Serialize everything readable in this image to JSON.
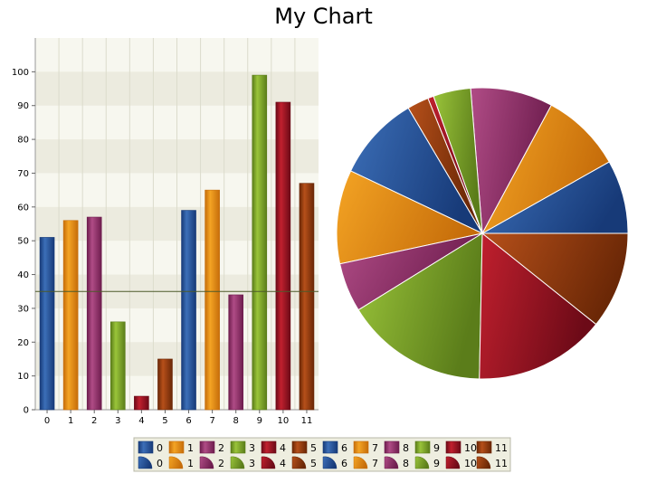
{
  "title": "My Chart",
  "chart_data": [
    {
      "type": "bar",
      "categories": [
        "0",
        "1",
        "2",
        "3",
        "4",
        "5",
        "6",
        "7",
        "8",
        "9",
        "10",
        "11"
      ],
      "values": [
        51,
        56,
        57,
        26,
        4,
        15,
        59,
        65,
        34,
        99,
        91,
        67
      ],
      "reference_line": 35,
      "ylim": [
        0,
        110
      ],
      "yticks": [
        0,
        10,
        20,
        30,
        40,
        50,
        60,
        70,
        80,
        90,
        100
      ],
      "grid": true
    },
    {
      "type": "pie",
      "categories": [
        "0",
        "1",
        "2",
        "3",
        "4",
        "5",
        "6",
        "7",
        "8",
        "9",
        "10",
        "11"
      ],
      "values": [
        51,
        56,
        57,
        26,
        4,
        15,
        59,
        65,
        34,
        99,
        91,
        67
      ]
    }
  ],
  "legend": {
    "bar_entries": [
      "0",
      "1",
      "2",
      "3",
      "4",
      "5",
      "6",
      "7",
      "8",
      "9",
      "10",
      "11"
    ],
    "pie_entries": [
      "0",
      "1",
      "2",
      "3",
      "4",
      "5",
      "6",
      "7",
      "8",
      "9",
      "10",
      "11"
    ],
    "placement": "bottom-center"
  },
  "palette": [
    {
      "light": "#3c6fb8",
      "dark": "#173a78"
    },
    {
      "light": "#f4a424",
      "dark": "#c66d0a"
    },
    {
      "light": "#b04c86",
      "dark": "#6e1d4e"
    },
    {
      "light": "#9ac43a",
      "dark": "#5b7d1a"
    },
    {
      "light": "#c1202e",
      "dark": "#6c0a17"
    },
    {
      "light": "#b6501a",
      "dark": "#6a2706"
    }
  ]
}
